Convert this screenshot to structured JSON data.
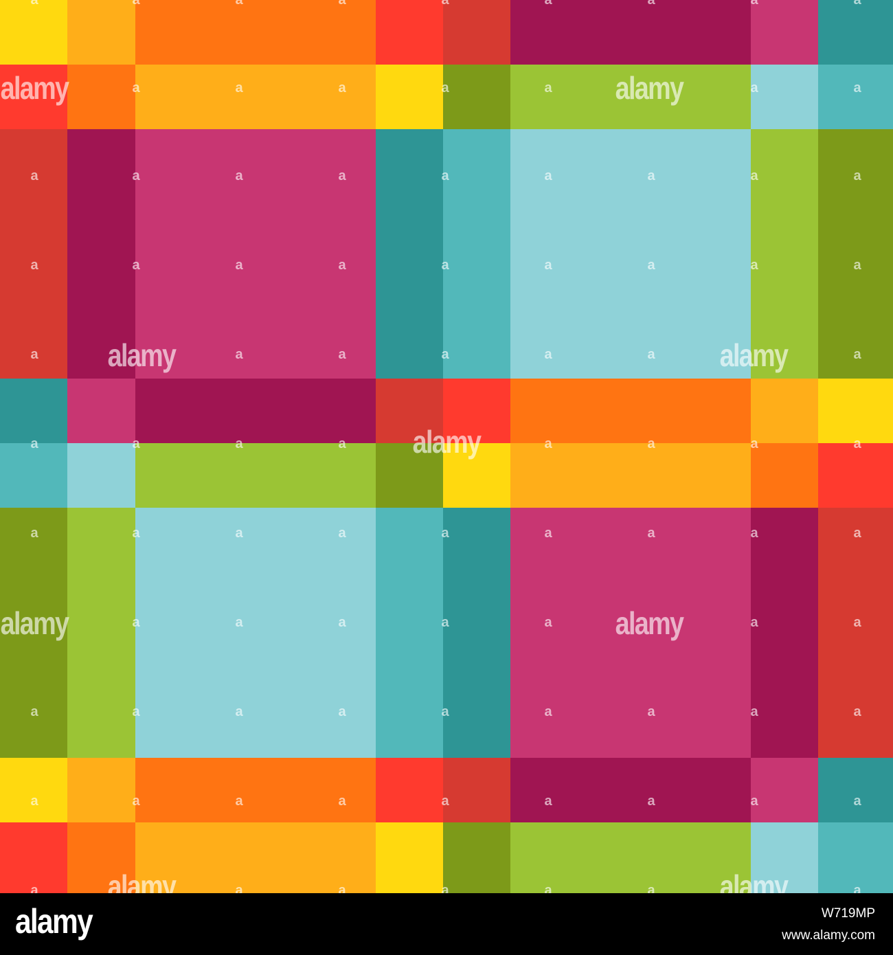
{
  "pattern": {
    "colors": {
      "Y": "#FFD90F",
      "O": "#FFAE19",
      "R": "#FF7412",
      "F": "#FF3A2E",
      "D": "#D63A31",
      "M": "#A01552",
      "P": "#C83672",
      "T": "#2E9595",
      "C": "#52B8BA",
      "L": "#8FD2D8",
      "G": "#9BC435",
      "V": "#7D9A19"
    },
    "rows": [
      [
        "Y",
        "O",
        "R",
        "F",
        "D",
        "M",
        "P",
        "T"
      ],
      [
        "F",
        "R",
        "O",
        "Y",
        "V",
        "G",
        "L",
        "C"
      ],
      [
        "D",
        "M",
        "P",
        "T",
        "C",
        "L",
        "G",
        "V"
      ],
      [
        "T",
        "P",
        "M",
        "D",
        "F",
        "R",
        "O",
        "Y"
      ],
      [
        "C",
        "L",
        "G",
        "V",
        "Y",
        "O",
        "R",
        "F"
      ],
      [
        "V",
        "G",
        "L",
        "C",
        "T",
        "P",
        "M",
        "D"
      ],
      [
        "Y",
        "O",
        "R",
        "F",
        "D",
        "M",
        "P",
        "T"
      ],
      [
        "F",
        "R",
        "O",
        "Y",
        "V",
        "G",
        "L",
        "C"
      ]
    ]
  },
  "watermark": {
    "logo_text": "alamy",
    "small_text": "a"
  },
  "footer": {
    "logo": "alamy",
    "image_id": "W719MP",
    "url": "www.alamy.com"
  }
}
